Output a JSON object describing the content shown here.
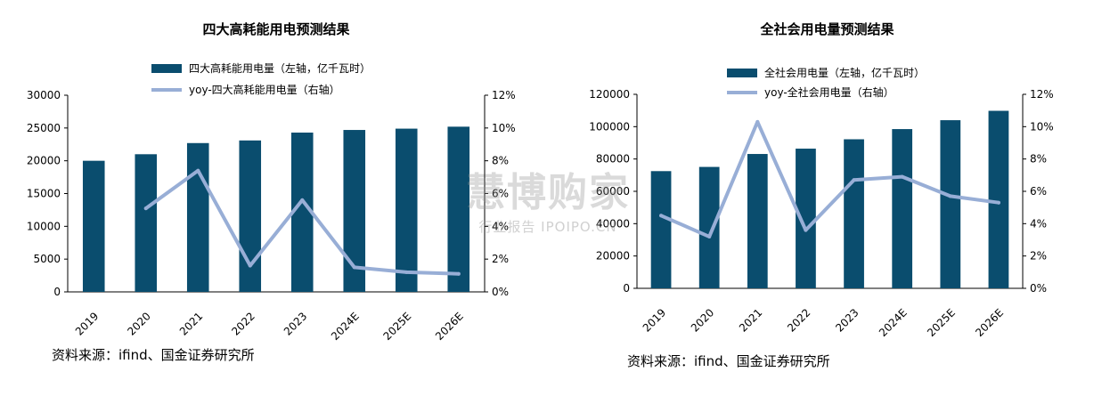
{
  "colors": {
    "bar": "#0a4d6e",
    "line": "#98aed6"
  },
  "source_note": "资料来源：ifind、国金证券研究所",
  "watermark": {
    "main": "慧博购家",
    "sub": "行业报告 IPOIPO.CN"
  },
  "chart_data": [
    {
      "type": "bar",
      "title": "四大高耗能用电预测结果",
      "categories": [
        "2019",
        "2020",
        "2021",
        "2022",
        "2023",
        "2024E",
        "2025E",
        "2026E"
      ],
      "series": [
        {
          "name": "四大高耗能用电量（左轴，亿千瓦时）",
          "type": "bar",
          "axis": "left",
          "values": [
            20000,
            21000,
            22700,
            23100,
            24300,
            24700,
            24900,
            25200
          ]
        },
        {
          "name": "yoy-四大高耗能用电量（右轴）",
          "type": "line",
          "axis": "right",
          "values": [
            null,
            5.1,
            7.4,
            1.6,
            5.6,
            1.5,
            1.2,
            1.1
          ]
        }
      ],
      "y_left": {
        "min": 0,
        "max": 30000,
        "ticks": [
          "0",
          "5000",
          "10000",
          "15000",
          "20000",
          "25000",
          "30000"
        ]
      },
      "y_right": {
        "min": 0,
        "max": 12,
        "ticks": [
          "0%",
          "2%",
          "4%",
          "6%",
          "8%",
          "10%",
          "12%"
        ]
      },
      "grid": false,
      "legend_position": "top"
    },
    {
      "type": "bar",
      "title": "全社会用电量预测结果",
      "categories": [
        "2019",
        "2020",
        "2021",
        "2022",
        "2023",
        "2024E",
        "2025E",
        "2026E"
      ],
      "series": [
        {
          "name": "全社会用电量（左轴，亿千瓦时）",
          "type": "bar",
          "axis": "left",
          "values": [
            72500,
            75100,
            83100,
            86400,
            92200,
            98500,
            104000,
            109800
          ]
        },
        {
          "name": "yoy-全社会用电量（右轴）",
          "type": "line",
          "axis": "right",
          "values": [
            4.5,
            3.2,
            10.3,
            3.6,
            6.7,
            6.9,
            5.7,
            5.3
          ]
        }
      ],
      "y_left": {
        "min": 0,
        "max": 120000,
        "ticks": [
          "0",
          "20000",
          "40000",
          "60000",
          "80000",
          "100000",
          "120000"
        ]
      },
      "y_right": {
        "min": 0,
        "max": 12,
        "ticks": [
          "0%",
          "2%",
          "4%",
          "6%",
          "8%",
          "10%",
          "12%"
        ]
      },
      "grid": false,
      "legend_position": "top"
    }
  ]
}
